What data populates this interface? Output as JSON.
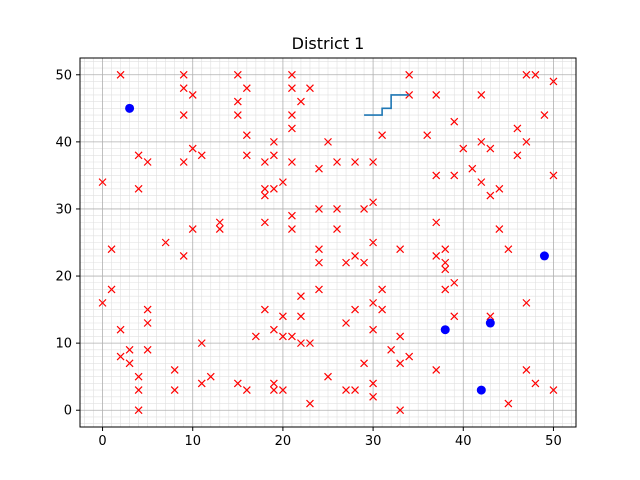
{
  "chart_data": {
    "type": "scatter",
    "title": "District 1",
    "xlabel": "",
    "ylabel": "",
    "xlim": [
      -2.5,
      52.5
    ],
    "ylim": [
      -2.5,
      52.5
    ],
    "xticks": [
      0,
      10,
      20,
      30,
      40,
      50
    ],
    "yticks": [
      0,
      10,
      20,
      30,
      40,
      50
    ],
    "grid": true,
    "minor_grid": true,
    "legend": "none",
    "colors": {
      "x_marker": "#ff0000",
      "dot_marker": "#0000ff",
      "path": "#1f77b4",
      "grid_major": "#b0b0b0",
      "grid_minor": "#e0e0e0"
    },
    "series": [
      {
        "marker": "x",
        "color": "#ff0000",
        "points": [
          [
            0,
            34
          ],
          [
            0,
            16
          ],
          [
            1,
            24
          ],
          [
            1,
            18
          ],
          [
            2,
            50
          ],
          [
            2,
            12
          ],
          [
            2,
            8
          ],
          [
            3,
            9
          ],
          [
            3,
            7
          ],
          [
            4,
            38
          ],
          [
            4,
            33
          ],
          [
            4,
            5
          ],
          [
            4,
            3
          ],
          [
            4,
            0
          ],
          [
            5,
            37
          ],
          [
            5,
            15
          ],
          [
            5,
            13
          ],
          [
            5,
            9
          ],
          [
            7,
            25
          ],
          [
            8,
            6
          ],
          [
            8,
            3
          ],
          [
            9,
            50
          ],
          [
            9,
            48
          ],
          [
            9,
            44
          ],
          [
            9,
            37
          ],
          [
            9,
            23
          ],
          [
            10,
            47
          ],
          [
            10,
            39
          ],
          [
            10,
            27
          ],
          [
            11,
            38
          ],
          [
            11,
            10
          ],
          [
            11,
            4
          ],
          [
            12,
            5
          ],
          [
            13,
            28
          ],
          [
            13,
            27
          ],
          [
            15,
            50
          ],
          [
            15,
            46
          ],
          [
            15,
            44
          ],
          [
            15,
            4
          ],
          [
            16,
            48
          ],
          [
            16,
            41
          ],
          [
            16,
            38
          ],
          [
            16,
            3
          ],
          [
            17,
            11
          ],
          [
            18,
            37
          ],
          [
            18,
            33
          ],
          [
            18,
            32
          ],
          [
            18,
            28
          ],
          [
            18,
            15
          ],
          [
            19,
            40
          ],
          [
            19,
            38
          ],
          [
            19,
            33
          ],
          [
            19,
            12
          ],
          [
            19,
            4
          ],
          [
            19,
            3
          ],
          [
            20,
            34
          ],
          [
            20,
            14
          ],
          [
            20,
            11
          ],
          [
            20,
            3
          ],
          [
            21,
            50
          ],
          [
            21,
            48
          ],
          [
            21,
            44
          ],
          [
            21,
            42
          ],
          [
            21,
            37
          ],
          [
            21,
            29
          ],
          [
            21,
            27
          ],
          [
            21,
            11
          ],
          [
            22,
            46
          ],
          [
            22,
            17
          ],
          [
            22,
            14
          ],
          [
            22,
            10
          ],
          [
            23,
            48
          ],
          [
            23,
            10
          ],
          [
            23,
            1
          ],
          [
            24,
            36
          ],
          [
            24,
            30
          ],
          [
            24,
            24
          ],
          [
            24,
            22
          ],
          [
            24,
            18
          ],
          [
            25,
            40
          ],
          [
            25,
            5
          ],
          [
            26,
            37
          ],
          [
            26,
            30
          ],
          [
            26,
            27
          ],
          [
            27,
            22
          ],
          [
            27,
            13
          ],
          [
            27,
            3
          ],
          [
            28,
            37
          ],
          [
            28,
            23
          ],
          [
            28,
            15
          ],
          [
            28,
            3
          ],
          [
            29,
            30
          ],
          [
            29,
            22
          ],
          [
            29,
            7
          ],
          [
            30,
            37
          ],
          [
            30,
            31
          ],
          [
            30,
            25
          ],
          [
            30,
            16
          ],
          [
            30,
            12
          ],
          [
            30,
            4
          ],
          [
            30,
            2
          ],
          [
            31,
            41
          ],
          [
            31,
            18
          ],
          [
            31,
            15
          ],
          [
            32,
            9
          ],
          [
            33,
            24
          ],
          [
            33,
            11
          ],
          [
            33,
            7
          ],
          [
            33,
            0
          ],
          [
            34,
            50
          ],
          [
            34,
            47
          ],
          [
            34,
            8
          ],
          [
            36,
            41
          ],
          [
            37,
            47
          ],
          [
            37,
            35
          ],
          [
            37,
            28
          ],
          [
            37,
            23
          ],
          [
            37,
            6
          ],
          [
            38,
            24
          ],
          [
            38,
            22
          ],
          [
            38,
            21
          ],
          [
            38,
            18
          ],
          [
            39,
            43
          ],
          [
            39,
            35
          ],
          [
            39,
            19
          ],
          [
            39,
            14
          ],
          [
            40,
            39
          ],
          [
            41,
            36
          ],
          [
            42,
            47
          ],
          [
            42,
            40
          ],
          [
            42,
            34
          ],
          [
            43,
            39
          ],
          [
            43,
            32
          ],
          [
            43,
            14
          ],
          [
            44,
            33
          ],
          [
            44,
            27
          ],
          [
            45,
            24
          ],
          [
            45,
            1
          ],
          [
            46,
            42
          ],
          [
            46,
            38
          ],
          [
            47,
            50
          ],
          [
            47,
            40
          ],
          [
            47,
            16
          ],
          [
            47,
            6
          ],
          [
            48,
            50
          ],
          [
            48,
            4
          ],
          [
            49,
            44
          ],
          [
            50,
            49
          ],
          [
            50,
            35
          ],
          [
            50,
            3
          ]
        ]
      },
      {
        "marker": "o",
        "color": "#0000ff",
        "points": [
          [
            3,
            45
          ],
          [
            49,
            23
          ],
          [
            43,
            13
          ],
          [
            38,
            12
          ],
          [
            42,
            3
          ]
        ]
      },
      {
        "marker": "line",
        "color": "#1f77b4",
        "points": [
          [
            29,
            44
          ],
          [
            31,
            44
          ],
          [
            31,
            45
          ],
          [
            32,
            45
          ],
          [
            32,
            47
          ],
          [
            34,
            47
          ]
        ]
      }
    ]
  }
}
